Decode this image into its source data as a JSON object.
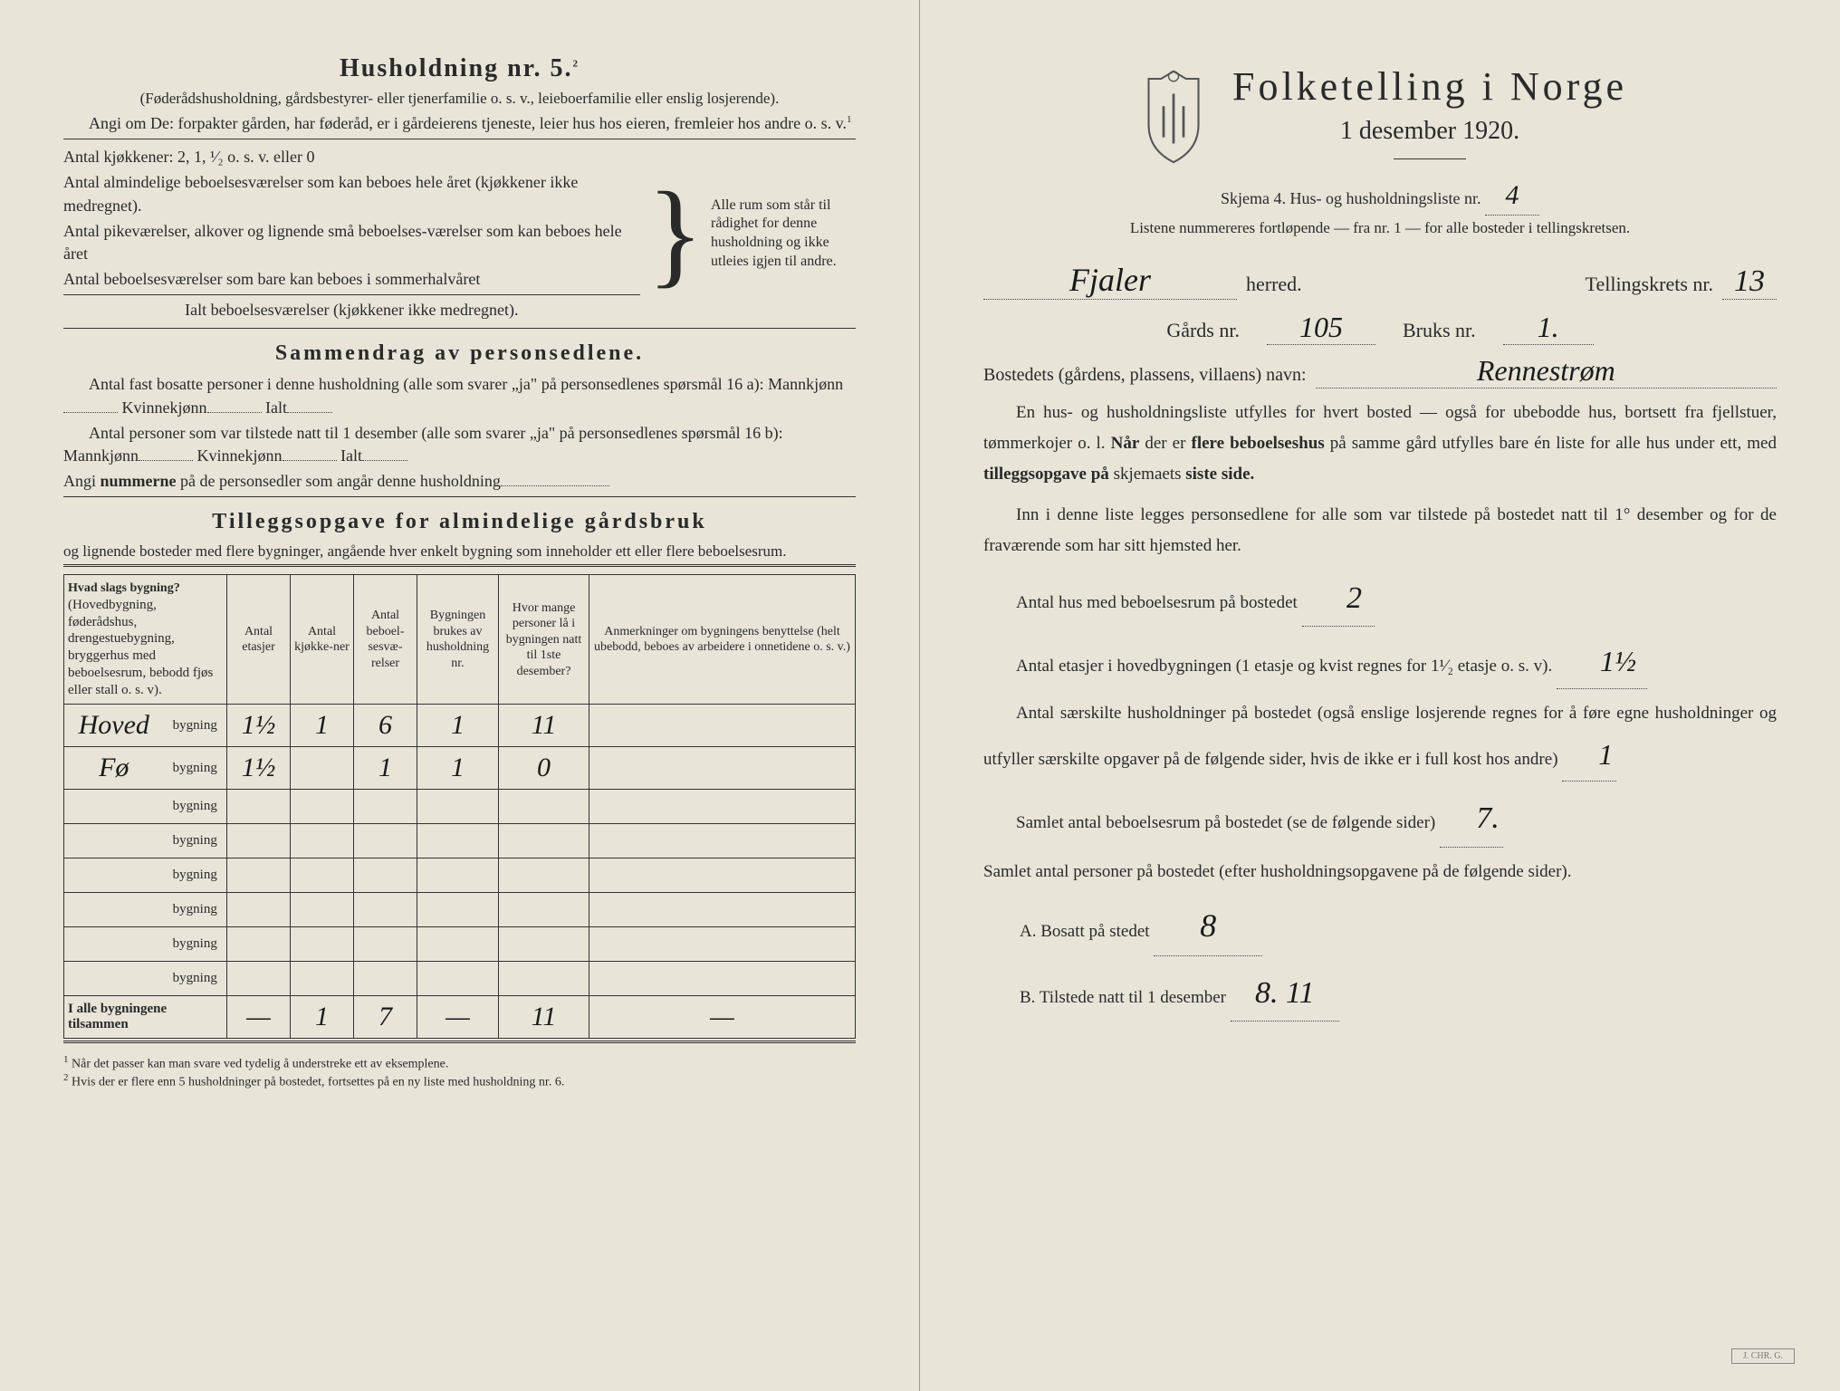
{
  "left": {
    "husholdning_title": "Husholdning nr. 5.",
    "husholdning_sup": "2",
    "husholdning_sub": "(Føderådshusholdning, gårdsbestyrer- eller tjenerfamilie o. s. v., leieboerfamilie eller enslig losjerende).",
    "angi_line": "Angi om De: forpakter gården, har føderåd, er i gårdeierens tjeneste, leier hus hos eieren, fremleier hos andre o. s. v.",
    "antal_kjok": "Antal kjøkkener: 2, 1, ¹⁄₂ o. s. v. eller 0",
    "antal_alm": "Antal almindelige beboelsesværelser som kan beboes hele året (kjøkkener ikke medregnet).",
    "antal_pike": "Antal pikeværelser, alkover og lignende små beboelses-værelser som kan beboes hele året",
    "antal_sommer": "Antal beboelsesværelser som bare kan beboes i sommerhalvåret",
    "ialt": "Ialt beboelsesværelser (kjøkkener ikke medregnet).",
    "bracket_text": "Alle rum som står til rådighet for denne husholdning og ikke utleies igjen til andre.",
    "sammendrag_title": "Sammendrag av personsedlene.",
    "sammendrag_1": "Antal fast bosatte personer i denne husholdning (alle som svarer „ja\" på personsedlenes spørsmål 16 a): Mannkjønn",
    "kvinnekjonn": "Kvinnekjønn",
    "ialt_label": "Ialt",
    "sammendrag_2": "Antal personer som var tilstede natt til 1 desember (alle som svarer „ja\" på personsedlenes spørsmål 16 b): Mannkjønn",
    "angi_num": "Angi nummerne på de personsedler som angår denne husholdning",
    "tillegg_title": "Tilleggsopgave for almindelige gårdsbruk",
    "tillegg_sub": "og lignende bosteder med flere bygninger, angående hver enkelt bygning som inneholder ett eller flere beboelsesrum.",
    "cols": {
      "c1": "Hvad slags bygning?",
      "c1_sub": "(Hovedbygning, føderådshus, drengestuebygning, bryggerhus med beboelsesrum, bebodd fjøs eller stall o. s. v).",
      "c2": "Antal etasjer",
      "c3": "Antal kjøkke-ner",
      "c4": "Antal beboel-sesvæ-relser",
      "c5": "Bygningen brukes av husholdning nr.",
      "c6": "Hvor mange personer lå i bygningen natt til 1ste desember?",
      "c7": "Anmerkninger om bygningens benyttelse (helt ubebodd, beboes av arbeidere i onnetidene o. s. v.)"
    },
    "rows": [
      {
        "type": "Hoved",
        "etasjer": "1½",
        "kjok": "1",
        "bebo": "6",
        "hushold": "1",
        "pers": "11",
        "anm": ""
      },
      {
        "type": "Fø",
        "etasjer": "1½",
        "kjok": "",
        "bebo": "1",
        "hushold": "1",
        "pers": "0",
        "anm": ""
      }
    ],
    "total_label": "I alle bygningene tilsammen",
    "totals": {
      "etasjer": "—",
      "kjok": "1",
      "bebo": "7",
      "hushold": "—",
      "pers": "11",
      "anm": "—"
    },
    "bygning_label": "bygning",
    "fn1": "Når det passer kan man svare ved tydelig å understreke ett av eksemplene.",
    "fn2": "Hvis der er flere enn 5 husholdninger på bostedet, fortsettes på en ny liste med husholdning nr. 6."
  },
  "right": {
    "title": "Folketelling i Norge",
    "date": "1 desember 1920.",
    "skjema": "Skjema 4.  Hus- og husholdningsliste nr.",
    "liste_nr": "4",
    "listene": "Listene nummereres fortløpende — fra nr. 1 — for alle bosteder i tellingskretsen.",
    "herred_val": "Fjaler",
    "herred_label": "herred.",
    "tell_label": "Tellingskrets nr.",
    "tell_val": "13",
    "gards_label": "Gårds nr.",
    "gards_val": "105",
    "bruks_label": "Bruks nr.",
    "bruks_val": "1.",
    "bostedets": "Bostedets (gårdens, plassens, villaens) navn:",
    "bosted_val": "Rennestrøm",
    "para1": "En hus- og husholdningsliste utfylles for hvert bosted — også for ubebodde hus, bortsett fra fjellstuer, tømmerkojer o. l. Når der er flere beboelseshus på samme gård utfylles bare én liste for alle hus under ett, med tilleggsopgave på skjemaets siste side.",
    "para2": "Inn i denne liste legges personsedlene for alle som var tilstede på bostedet natt til 1° desember og for de fraværende som har sitt hjemsted her.",
    "antal_hus": "Antal hus med beboelsesrum på bostedet",
    "antal_hus_val": "2",
    "antal_etasjer": "Antal etasjer i hovedbygningen (1 etasje og kvist regnes for 1¹⁄₂ etasje o. s. v).",
    "antal_etasjer_val": "1½",
    "antal_saer": "Antal særskilte husholdninger på bostedet (også enslige losjerende regnes for å føre egne husholdninger og utfyller særskilte opgaver på de følgende sider, hvis de ikke er i full kost hos andre)",
    "antal_saer_val": "1",
    "samlet_bebo": "Samlet antal beboelsesrum på bostedet (se de følgende sider)",
    "samlet_bebo_val": "7.",
    "samlet_pers": "Samlet antal personer på bostedet (efter husholdningsopgavene på de følgende sider).",
    "a_label": "A.  Bosatt på stedet",
    "a_val": "8",
    "b_label": "B.  Tilstede natt til 1 desember",
    "b_val": "8. 11"
  }
}
